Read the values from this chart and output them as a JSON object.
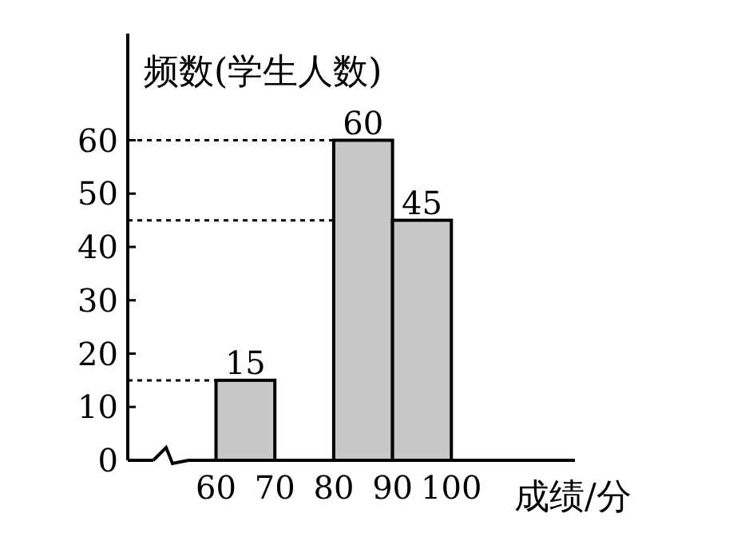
{
  "chart_data": {
    "type": "histogram",
    "ylabel": "频数(学生人数)",
    "xlabel": "成绩/分",
    "bins": [
      60,
      70,
      80,
      90,
      100
    ],
    "values": [
      15,
      null,
      60,
      45
    ],
    "color": "#c8c8c8",
    "xlim": [
      45,
      121
    ],
    "xticks": [
      60,
      70,
      80,
      90,
      100
    ],
    "ylim": [
      0,
      80
    ],
    "yticks": [
      0,
      10,
      20,
      30,
      40,
      50,
      60
    ],
    "data_labels": true,
    "ref_lines": [
      {
        "axis": "y",
        "value": 15,
        "line_style": "dotted"
      },
      {
        "axis": "y",
        "value": 45,
        "line_style": "dotted"
      },
      {
        "axis": "y",
        "value": 60,
        "line_style": "dotted"
      }
    ]
  }
}
